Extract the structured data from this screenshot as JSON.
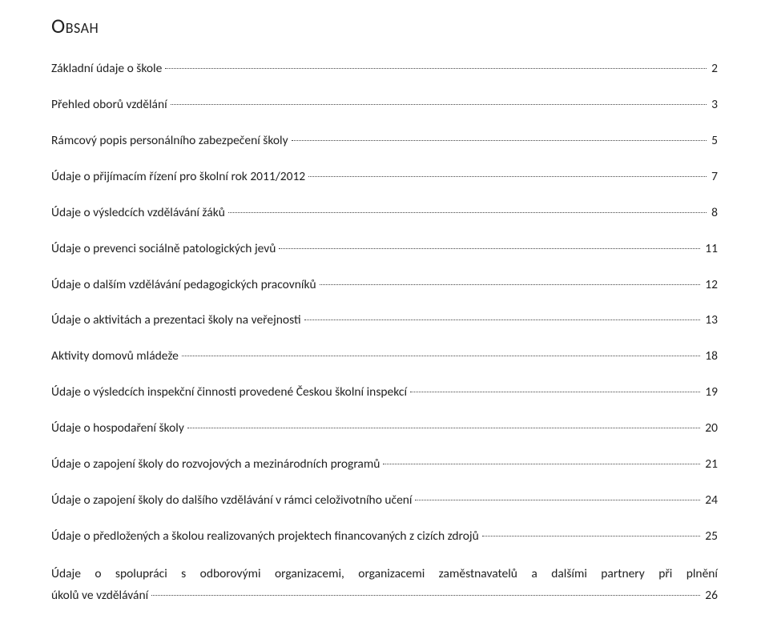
{
  "title": "Obsah",
  "entries": [
    {
      "label": "Základní údaje o škole",
      "page": "2"
    },
    {
      "label": "Přehled oborů vzdělání",
      "page": "3"
    },
    {
      "label": "Rámcový popis personálního zabezpečení školy",
      "page": "5"
    },
    {
      "label": "Údaje o přijímacím řízení pro školní rok 2011/2012",
      "page": "7"
    },
    {
      "label": "Údaje o výsledcích vzdělávání žáků",
      "page": "8"
    },
    {
      "label": "Údaje o prevenci sociálně patologických jevů",
      "page": "11"
    },
    {
      "label": "Údaje o dalším vzdělávání pedagogických pracovníků",
      "page": "12"
    },
    {
      "label": "Údaje o aktivitách a prezentaci školy na veřejnosti",
      "page": "13"
    },
    {
      "label": "Aktivity domovů mládeže",
      "page": "18"
    },
    {
      "label": "Údaje o výsledcích inspekční činnosti provedené Českou školní inspekcí",
      "page": "19"
    },
    {
      "label": "Údaje o hospodaření školy",
      "page": "20"
    },
    {
      "label": "Údaje o zapojení školy do rozvojových a mezinárodních programů",
      "page": "21"
    },
    {
      "label": "Údaje o zapojení školy do dalšího vzdělávání v rámci celoživotního učení",
      "page": "24"
    },
    {
      "label": "Údaje o předložených a školou realizovaných projektech financovaných z cizích zdrojů",
      "page": "25"
    }
  ],
  "wrappedEntry": {
    "line1": "Údaje o spolupráci s odborovými organizacemi, organizacemi zaměstnavatelů a dalšími partnery při plnění",
    "line2": "úkolů ve vzdělávání",
    "page": "26"
  },
  "colors": {
    "text": "#222222",
    "background": "#ffffff",
    "leader": "#444444"
  },
  "typography": {
    "title_fontsize_pt": 20,
    "body_fontsize_pt": 11.5,
    "font_family": "Calibri"
  }
}
